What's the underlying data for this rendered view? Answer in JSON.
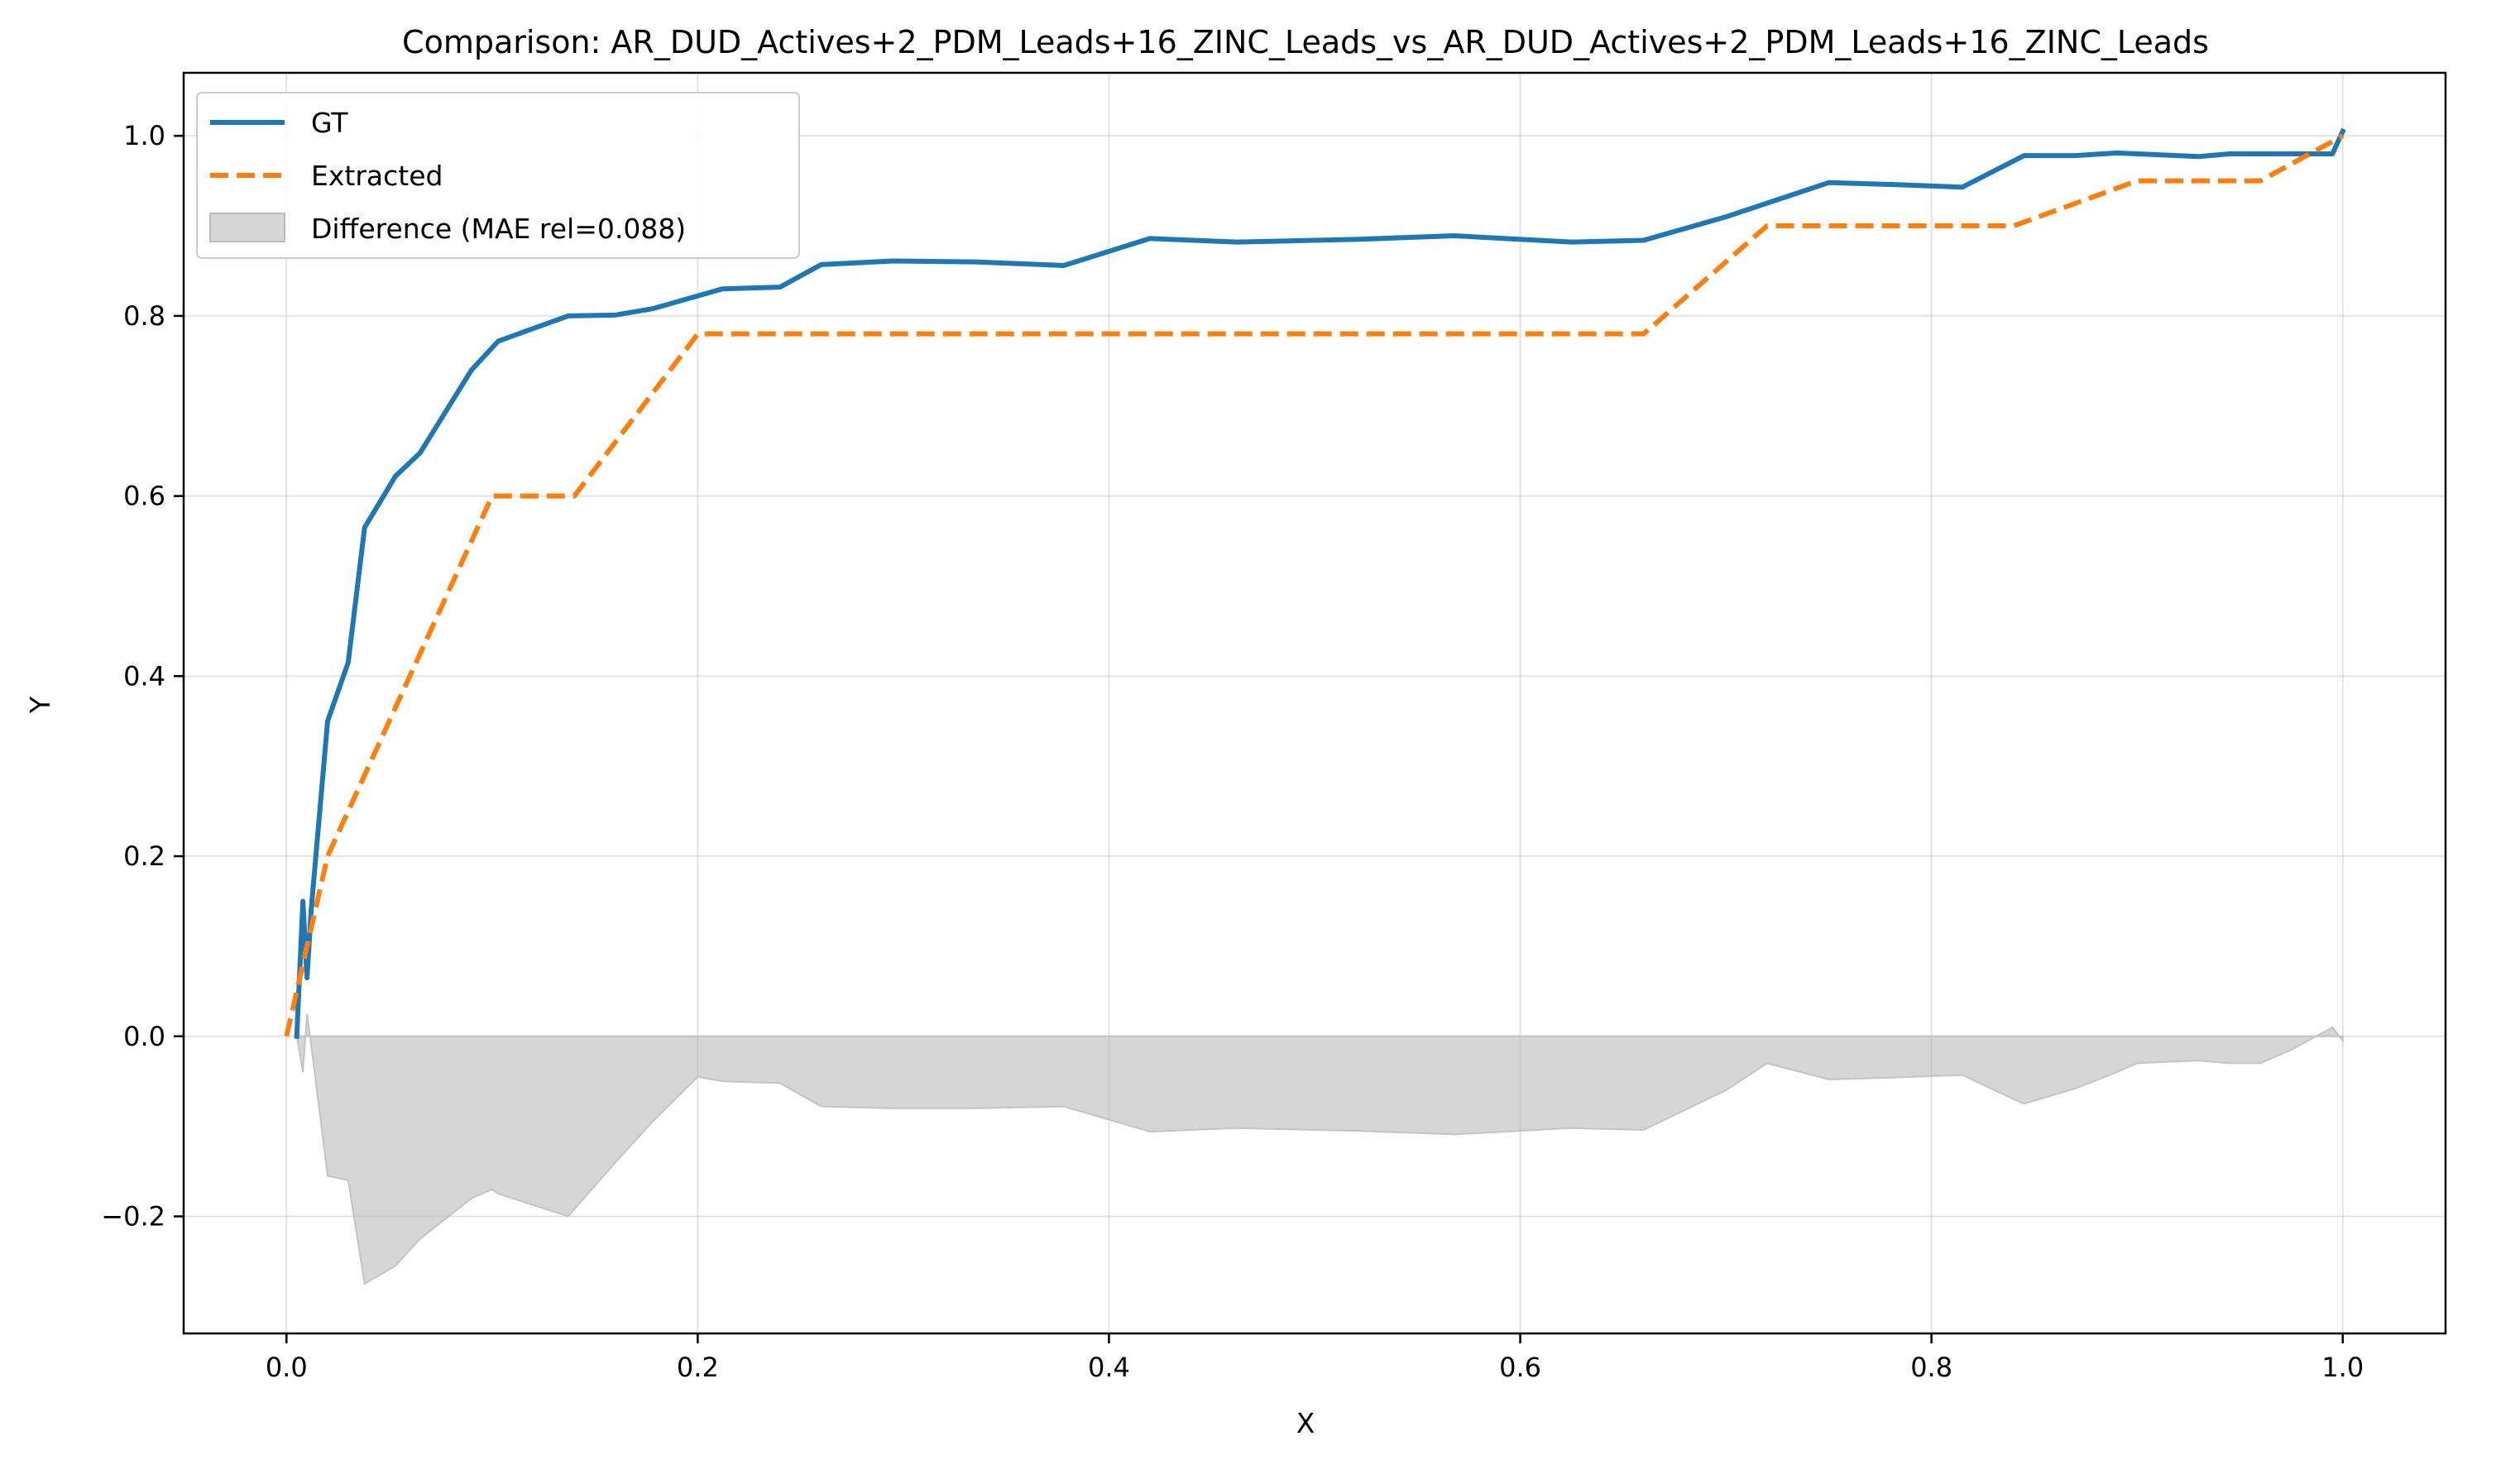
{
  "chart_data": {
    "type": "line",
    "title": "Comparison: AR_DUD_Actives+2_PDM_Leads+16_ZINC_Leads_vs_AR_DUD_Actives+2_PDM_Leads+16_ZINC_Leads",
    "xlabel": "X",
    "ylabel": "Y",
    "xlim": [
      -0.05,
      1.05
    ],
    "ylim": [
      -0.33,
      1.07
    ],
    "xticks": [
      0.0,
      0.2,
      0.4,
      0.6,
      0.8,
      1.0
    ],
    "xtick_labels": [
      "0.0",
      "0.2",
      "0.4",
      "0.6",
      "0.8",
      "1.0"
    ],
    "yticks": [
      -0.2,
      0.0,
      0.2,
      0.4,
      0.6,
      0.8,
      1.0
    ],
    "ytick_labels": [
      "−0.2",
      "0.0",
      "0.2",
      "0.4",
      "0.6",
      "0.8",
      "1.0"
    ],
    "grid": true,
    "legend_position": "top-left",
    "series": [
      {
        "name": "GT",
        "style": "solid",
        "color": "#1f77b4",
        "x": [
          0.005,
          0.008,
          0.01,
          0.012,
          0.02,
          0.03,
          0.038,
          0.053,
          0.065,
          0.09,
          0.103,
          0.137,
          0.16,
          0.178,
          0.212,
          0.24,
          0.26,
          0.295,
          0.335,
          0.378,
          0.42,
          0.462,
          0.52,
          0.568,
          0.625,
          0.66,
          0.7,
          0.75,
          0.78,
          0.815,
          0.845,
          0.87,
          0.89,
          0.93,
          0.945,
          0.96,
          0.975,
          0.995,
          1.0
        ],
        "y": [
          0.0,
          0.15,
          0.065,
          0.14,
          0.35,
          0.415,
          0.565,
          0.622,
          0.648,
          0.74,
          0.772,
          0.8,
          0.801,
          0.808,
          0.83,
          0.832,
          0.857,
          0.861,
          0.86,
          0.856,
          0.886,
          0.882,
          0.885,
          0.889,
          0.882,
          0.884,
          0.91,
          0.948,
          0.946,
          0.943,
          0.978,
          0.978,
          0.981,
          0.977,
          0.98,
          0.98,
          0.98,
          0.98,
          1.005
        ]
      },
      {
        "name": "Extracted",
        "style": "dashed",
        "color": "#ff7f0e",
        "x": [
          0.0,
          0.02,
          0.1,
          0.14,
          0.2,
          0.66,
          0.72,
          0.84,
          0.9,
          0.96,
          1.0
        ],
        "y": [
          0.0,
          0.2,
          0.6,
          0.6,
          0.78,
          0.78,
          0.9,
          0.9,
          0.95,
          0.95,
          1.0
        ]
      }
    ],
    "difference": {
      "name": "Difference (MAE rel=0.088)",
      "color": "#bbbbbb",
      "x": [
        0.005,
        0.008,
        0.01,
        0.012,
        0.02,
        0.03,
        0.038,
        0.053,
        0.065,
        0.09,
        0.1,
        0.103,
        0.137,
        0.16,
        0.178,
        0.2,
        0.212,
        0.24,
        0.26,
        0.295,
        0.335,
        0.378,
        0.42,
        0.462,
        0.52,
        0.568,
        0.625,
        0.66,
        0.7,
        0.72,
        0.75,
        0.78,
        0.815,
        0.84,
        0.845,
        0.87,
        0.89,
        0.9,
        0.93,
        0.945,
        0.96,
        0.975,
        0.995,
        1.0
      ],
      "y": [
        0.0,
        -0.04,
        0.025,
        -0.01,
        -0.155,
        -0.16,
        -0.275,
        -0.255,
        -0.225,
        -0.18,
        -0.17,
        -0.175,
        -0.2,
        -0.14,
        -0.095,
        -0.045,
        -0.05,
        -0.052,
        -0.078,
        -0.08,
        -0.08,
        -0.078,
        -0.106,
        -0.102,
        -0.105,
        -0.109,
        -0.102,
        -0.104,
        -0.06,
        -0.03,
        -0.048,
        -0.046,
        -0.043,
        -0.07,
        -0.075,
        -0.058,
        -0.04,
        -0.03,
        -0.027,
        -0.03,
        -0.03,
        -0.015,
        0.01,
        -0.005
      ]
    }
  }
}
